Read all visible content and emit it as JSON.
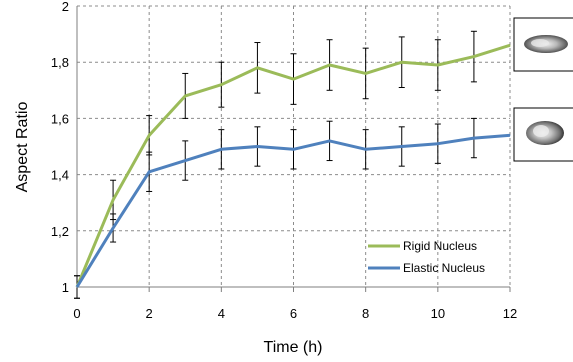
{
  "chart_data": {
    "type": "line",
    "xlabel": "Time (h)",
    "ylabel": "Aspect Ratio",
    "xlim": [
      0,
      12
    ],
    "ylim": [
      1,
      2
    ],
    "x_ticks": [
      "0",
      "2",
      "4",
      "6",
      "8",
      "10",
      "12"
    ],
    "y_ticks": [
      "1",
      "1,2",
      "1,4",
      "1,6",
      "1,8",
      "2"
    ],
    "grid": true,
    "legend_position": "bottom-right",
    "x": [
      0,
      1,
      2,
      3,
      4,
      5,
      6,
      7,
      8,
      9,
      10,
      11,
      12
    ],
    "series": [
      {
        "name": "Rigid Nucleus",
        "color": "#9bbb59",
        "values": [
          1.0,
          1.31,
          1.54,
          1.68,
          1.72,
          1.78,
          1.74,
          1.79,
          1.76,
          1.8,
          1.79,
          1.82,
          1.86
        ],
        "errors": [
          0.04,
          0.07,
          0.07,
          0.08,
          0.08,
          0.09,
          0.09,
          0.09,
          0.09,
          0.09,
          0.09,
          0.09,
          0.0
        ]
      },
      {
        "name": "Elastic Nucleus",
        "color": "#4f81bd",
        "values": [
          1.0,
          1.21,
          1.41,
          1.45,
          1.49,
          1.5,
          1.49,
          1.52,
          1.49,
          1.5,
          1.51,
          1.53,
          1.54
        ],
        "errors": [
          0.04,
          0.05,
          0.07,
          0.07,
          0.07,
          0.07,
          0.07,
          0.07,
          0.07,
          0.07,
          0.07,
          0.07,
          0.0
        ]
      }
    ]
  },
  "insets": [
    {
      "icon": "elongated-nucleus-image"
    },
    {
      "icon": "rounder-nucleus-image"
    }
  ]
}
